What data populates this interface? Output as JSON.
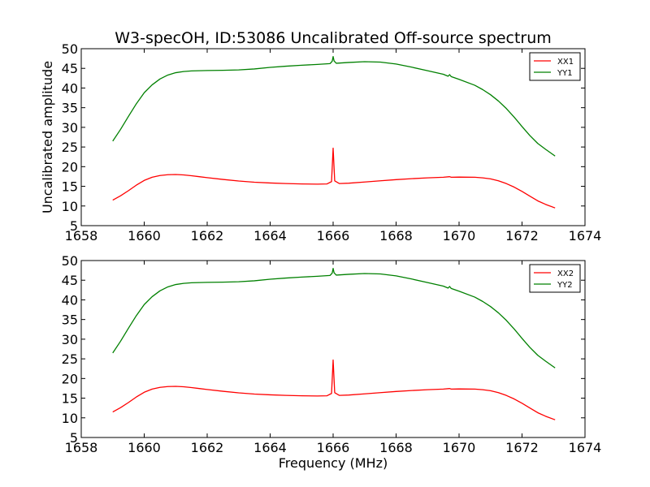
{
  "title": "W3-specOH, ID:53086 Uncalibrated Off-source spectrum",
  "colors": {
    "red": "#ff0000",
    "green": "#008000",
    "axes": "#000000",
    "background": "#ffffff"
  },
  "chart_data": [
    {
      "type": "line",
      "panel": "top",
      "title": "",
      "xlabel": "",
      "ylabel": "Uncalibrated amplitude",
      "xlim": [
        1658,
        1674
      ],
      "ylim": [
        5,
        50
      ],
      "xticks": [
        1658,
        1660,
        1662,
        1664,
        1666,
        1668,
        1670,
        1672,
        1674
      ],
      "yticks": [
        5,
        10,
        15,
        20,
        25,
        30,
        35,
        40,
        45,
        50
      ],
      "xtick_labels": [
        "1658",
        "1660",
        "1662",
        "1664",
        "1666",
        "1668",
        "1670",
        "1672",
        "1674"
      ],
      "ytick_labels": [
        "5",
        "10",
        "15",
        "20",
        "25",
        "30",
        "35",
        "40",
        "45",
        "50"
      ],
      "grid": false,
      "legend": "top-right",
      "series": [
        {
          "name": "XX1",
          "color": "#ff0000",
          "x": [
            1659.0,
            1659.25,
            1659.5,
            1659.75,
            1660.0,
            1660.25,
            1660.5,
            1660.75,
            1661.0,
            1661.25,
            1661.5,
            1661.75,
            1662.0,
            1662.5,
            1663.0,
            1663.5,
            1664.0,
            1664.5,
            1665.0,
            1665.5,
            1665.8,
            1665.95,
            1666.0,
            1666.05,
            1666.2,
            1666.5,
            1667.0,
            1667.5,
            1668.0,
            1668.5,
            1669.0,
            1669.5,
            1669.7,
            1669.75,
            1670.0,
            1670.5,
            1670.75,
            1671.0,
            1671.25,
            1671.5,
            1671.75,
            1672.0,
            1672.25,
            1672.5,
            1672.75,
            1673.05
          ],
          "y": [
            11.5,
            12.6,
            13.9,
            15.3,
            16.5,
            17.3,
            17.75,
            17.95,
            18.0,
            17.9,
            17.7,
            17.45,
            17.2,
            16.75,
            16.35,
            16.05,
            15.85,
            15.7,
            15.6,
            15.55,
            15.6,
            16.2,
            24.7,
            16.4,
            15.7,
            15.8,
            16.1,
            16.4,
            16.7,
            16.95,
            17.15,
            17.3,
            17.45,
            17.3,
            17.35,
            17.3,
            17.15,
            16.9,
            16.4,
            15.7,
            14.8,
            13.7,
            12.5,
            11.3,
            10.4,
            9.5
          ]
        }
      ]
    },
    {
      "type": "line",
      "panel": "top",
      "series": [
        {
          "name": "YY1",
          "color": "#008000",
          "x": [
            1659.0,
            1659.25,
            1659.5,
            1659.75,
            1660.0,
            1660.25,
            1660.5,
            1660.75,
            1661.0,
            1661.25,
            1661.5,
            1662.0,
            1662.5,
            1663.0,
            1663.5,
            1664.0,
            1664.5,
            1665.0,
            1665.5,
            1665.9,
            1665.97,
            1666.0,
            1666.03,
            1666.1,
            1666.5,
            1667.0,
            1667.5,
            1668.0,
            1668.5,
            1669.0,
            1669.5,
            1669.65,
            1669.7,
            1669.75,
            1670.0,
            1670.5,
            1670.75,
            1671.0,
            1671.25,
            1671.5,
            1671.75,
            1672.0,
            1672.25,
            1672.5,
            1672.75,
            1673.05
          ],
          "y": [
            26.5,
            29.5,
            32.8,
            36.0,
            38.8,
            40.8,
            42.3,
            43.3,
            43.9,
            44.2,
            44.35,
            44.45,
            44.5,
            44.6,
            44.85,
            45.25,
            45.55,
            45.8,
            46.0,
            46.2,
            46.8,
            48.0,
            46.9,
            46.3,
            46.5,
            46.7,
            46.6,
            46.1,
            45.3,
            44.4,
            43.5,
            43.0,
            43.4,
            42.9,
            42.2,
            40.7,
            39.6,
            38.3,
            36.7,
            34.8,
            32.6,
            30.2,
            27.9,
            25.9,
            24.4,
            22.7
          ]
        }
      ]
    },
    {
      "type": "line",
      "panel": "bottom",
      "title": "",
      "xlabel": "Frequency (MHz)",
      "ylabel": "",
      "xlim": [
        1658,
        1674
      ],
      "ylim": [
        5,
        50
      ],
      "xticks": [
        1658,
        1660,
        1662,
        1664,
        1666,
        1668,
        1670,
        1672,
        1674
      ],
      "yticks": [
        5,
        10,
        15,
        20,
        25,
        30,
        35,
        40,
        45,
        50
      ],
      "xtick_labels": [
        "1658",
        "1660",
        "1662",
        "1664",
        "1666",
        "1668",
        "1670",
        "1672",
        "1674"
      ],
      "ytick_labels": [
        "5",
        "10",
        "15",
        "20",
        "25",
        "30",
        "35",
        "40",
        "45",
        "50"
      ],
      "grid": false,
      "legend": "top-right",
      "series": [
        {
          "name": "XX2",
          "color": "#ff0000",
          "x": [
            1659.0,
            1659.25,
            1659.5,
            1659.75,
            1660.0,
            1660.25,
            1660.5,
            1660.75,
            1661.0,
            1661.25,
            1661.5,
            1661.75,
            1662.0,
            1662.5,
            1663.0,
            1663.5,
            1664.0,
            1664.5,
            1665.0,
            1665.5,
            1665.8,
            1665.95,
            1666.0,
            1666.05,
            1666.2,
            1666.5,
            1667.0,
            1667.5,
            1668.0,
            1668.5,
            1669.0,
            1669.5,
            1669.7,
            1669.75,
            1670.0,
            1670.5,
            1670.75,
            1671.0,
            1671.25,
            1671.5,
            1671.75,
            1672.0,
            1672.25,
            1672.5,
            1672.75,
            1673.05
          ],
          "y": [
            11.5,
            12.6,
            13.9,
            15.3,
            16.5,
            17.3,
            17.75,
            17.95,
            18.0,
            17.9,
            17.7,
            17.45,
            17.2,
            16.75,
            16.35,
            16.05,
            15.85,
            15.7,
            15.6,
            15.55,
            15.6,
            16.2,
            24.7,
            16.4,
            15.7,
            15.8,
            16.1,
            16.4,
            16.7,
            16.95,
            17.15,
            17.3,
            17.45,
            17.3,
            17.35,
            17.3,
            17.15,
            16.9,
            16.4,
            15.7,
            14.8,
            13.7,
            12.5,
            11.3,
            10.4,
            9.5
          ]
        }
      ]
    },
    {
      "type": "line",
      "panel": "bottom",
      "series": [
        {
          "name": "YY2",
          "color": "#008000",
          "x": [
            1659.0,
            1659.25,
            1659.5,
            1659.75,
            1660.0,
            1660.25,
            1660.5,
            1660.75,
            1661.0,
            1661.25,
            1661.5,
            1662.0,
            1662.5,
            1663.0,
            1663.5,
            1664.0,
            1664.5,
            1665.0,
            1665.5,
            1665.9,
            1665.97,
            1666.0,
            1666.03,
            1666.1,
            1666.5,
            1667.0,
            1667.5,
            1668.0,
            1668.5,
            1669.0,
            1669.5,
            1669.65,
            1669.7,
            1669.75,
            1670.0,
            1670.5,
            1670.75,
            1671.0,
            1671.25,
            1671.5,
            1671.75,
            1672.0,
            1672.25,
            1672.5,
            1672.75,
            1673.05
          ],
          "y": [
            26.5,
            29.5,
            32.8,
            36.0,
            38.8,
            40.8,
            42.3,
            43.3,
            43.9,
            44.2,
            44.35,
            44.45,
            44.5,
            44.6,
            44.85,
            45.25,
            45.55,
            45.8,
            46.0,
            46.2,
            46.8,
            48.0,
            46.9,
            46.3,
            46.5,
            46.7,
            46.6,
            46.1,
            45.3,
            44.4,
            43.5,
            43.0,
            43.4,
            42.9,
            42.2,
            40.7,
            39.6,
            38.3,
            36.7,
            34.8,
            32.6,
            30.2,
            27.9,
            25.9,
            24.4,
            22.7
          ]
        }
      ]
    }
  ]
}
